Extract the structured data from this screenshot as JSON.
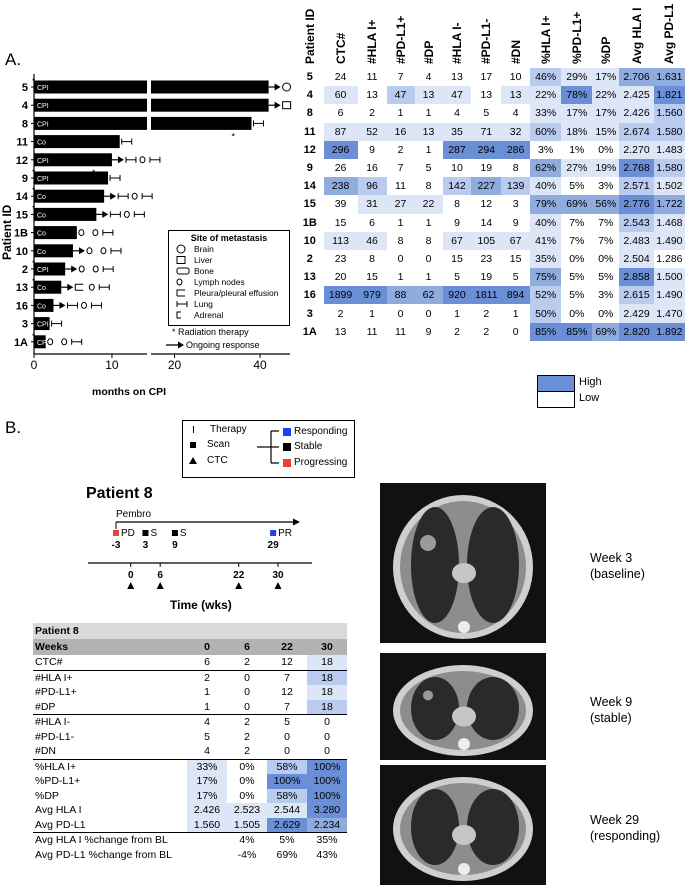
{
  "panel_a_label": "A.",
  "panel_b_label": "B.",
  "swimmer": {
    "y_axis_label": "Patient ID",
    "x_axis_label": "months on CPI",
    "x_ticks": [
      "0",
      "10",
      "20",
      "40"
    ],
    "x_range": [
      0,
      47
    ],
    "axis_break": 14.5,
    "patients": [
      {
        "id": "5",
        "tx": "CPI",
        "months": 42,
        "rt": true,
        "ongoing": true,
        "marker": "brain",
        "star_mid": false
      },
      {
        "id": "4",
        "tx": "CPI",
        "months": 42,
        "rt": false,
        "ongoing": true,
        "marker": "liver",
        "star_mid": false
      },
      {
        "id": "8",
        "tx": "CPI",
        "months": 38,
        "rt": false,
        "ongoing": false,
        "marker": "lung",
        "star_mid": true
      },
      {
        "id": "11",
        "tx": "Co",
        "months": 11,
        "rt": false,
        "ongoing": false,
        "marker": "lung",
        "star_mid": false
      },
      {
        "id": "12",
        "tx": "CPI",
        "months": 10,
        "rt": false,
        "ongoing": true,
        "marker": "lung",
        "star_mid": true
      },
      {
        "id": "9",
        "tx": "CPI",
        "months": 9.5,
        "rt": true,
        "ongoing": false,
        "marker": "lung",
        "star_mid": false
      },
      {
        "id": "14",
        "tx": "Co",
        "months": 9,
        "rt": true,
        "ongoing": true,
        "marker": "lung",
        "star_mid": false
      },
      {
        "id": "15",
        "tx": "Co",
        "months": 8,
        "rt": true,
        "ongoing": true,
        "marker": "lung",
        "star_mid": false
      },
      {
        "id": "1B",
        "tx": "Co",
        "months": 5.5,
        "rt": false,
        "ongoing": false,
        "marker": "lymph",
        "star_mid": false
      },
      {
        "id": "10",
        "tx": "Co",
        "months": 5,
        "rt": false,
        "ongoing": true,
        "marker": "lymph",
        "star_mid": false
      },
      {
        "id": "2",
        "tx": "CPI",
        "months": 4,
        "rt": true,
        "ongoing": true,
        "marker": "lymph",
        "star_mid": false
      },
      {
        "id": "13",
        "tx": "Co",
        "months": 3.5,
        "rt": true,
        "ongoing": true,
        "marker": "pleura",
        "star_mid": false
      },
      {
        "id": "16",
        "tx": "Co",
        "months": 2.5,
        "rt": false,
        "ongoing": true,
        "marker": "lung",
        "star_mid": false
      },
      {
        "id": "3",
        "tx": "CPI",
        "months": 2,
        "rt": false,
        "ongoing": false,
        "marker": "lung",
        "star_mid": false
      },
      {
        "id": "1A",
        "tx": "CPI",
        "months": 1.5,
        "rt": true,
        "ongoing": false,
        "marker": "lymph",
        "star_mid": false
      }
    ],
    "legend_title": "Site of metastasis",
    "legend_items": [
      {
        "name": "brain",
        "label": "Brain"
      },
      {
        "name": "liver",
        "label": "Liver"
      },
      {
        "name": "bone",
        "label": "Bone"
      },
      {
        "name": "lymph",
        "label": "Lymph nodes"
      },
      {
        "name": "pleura",
        "label": "Pleura/pleural effusion"
      },
      {
        "name": "lung",
        "label": "Lung"
      },
      {
        "name": "adrenal",
        "label": "Adrenal"
      }
    ],
    "rt_label": "Radiation therapy",
    "ongoing_label": "Ongoing response"
  },
  "heatmap": {
    "headers": [
      "Patient ID",
      "CTC#",
      "#HLA I+",
      "#PD-L1+",
      "#DP",
      "#HLA I-",
      "#PD-L1-",
      "#DN",
      "%HLA I+",
      "%PD-L1+",
      "%DP",
      "Avg HLA I",
      "Avg PD-L1"
    ],
    "rows": [
      {
        "id": "5",
        "cells": [
          "24",
          "11",
          "7",
          "4",
          "13",
          "17",
          "10",
          "46%",
          "29%",
          "17%",
          "2.706",
          "1.631"
        ],
        "shade": [
          0,
          0,
          0,
          0,
          0,
          0,
          0,
          2,
          1,
          1,
          3,
          3
        ]
      },
      {
        "id": "4",
        "cells": [
          "60",
          "13",
          "47",
          "13",
          "47",
          "13",
          "13",
          "22%",
          "78%",
          "22%",
          "2.425",
          "1.821"
        ],
        "shade": [
          1,
          0,
          2,
          1,
          1,
          0,
          1,
          1,
          4,
          1,
          1,
          4
        ]
      },
      {
        "id": "8",
        "cells": [
          "6",
          "2",
          "1",
          "1",
          "4",
          "5",
          "4",
          "33%",
          "17%",
          "17%",
          "2.426",
          "1.560"
        ],
        "shade": [
          0,
          0,
          0,
          0,
          0,
          0,
          0,
          1,
          1,
          1,
          1,
          2
        ]
      },
      {
        "id": "11",
        "cells": [
          "87",
          "52",
          "16",
          "13",
          "35",
          "71",
          "32",
          "60%",
          "18%",
          "15%",
          "2.674",
          "1.580"
        ],
        "shade": [
          1,
          1,
          1,
          1,
          1,
          1,
          1,
          2,
          1,
          1,
          2,
          2
        ]
      },
      {
        "id": "12",
        "cells": [
          "296",
          "9",
          "2",
          "1",
          "287",
          "294",
          "286",
          "3%",
          "1%",
          "0%",
          "2.270",
          "1.483"
        ],
        "shade": [
          4,
          0,
          0,
          0,
          4,
          4,
          4,
          0,
          0,
          0,
          1,
          1
        ]
      },
      {
        "id": "9",
        "cells": [
          "26",
          "16",
          "7",
          "5",
          "10",
          "19",
          "8",
          "62%",
          "27%",
          "19%",
          "2.768",
          "1.580"
        ],
        "shade": [
          0,
          0,
          0,
          0,
          0,
          0,
          0,
          3,
          1,
          1,
          4,
          2
        ]
      },
      {
        "id": "14",
        "cells": [
          "238",
          "96",
          "11",
          "8",
          "142",
          "227",
          "139",
          "40%",
          "5%",
          "3%",
          "2.571",
          "1.502"
        ],
        "shade": [
          3,
          2,
          0,
          0,
          2,
          3,
          2,
          1,
          0,
          0,
          2,
          1
        ]
      },
      {
        "id": "15",
        "cells": [
          "39",
          "31",
          "27",
          "22",
          "8",
          "12",
          "3",
          "79%",
          "69%",
          "56%",
          "2.776",
          "1.722"
        ],
        "shade": [
          0,
          1,
          1,
          1,
          0,
          0,
          0,
          3,
          3,
          3,
          4,
          3
        ]
      },
      {
        "id": "1B",
        "cells": [
          "15",
          "6",
          "1",
          "1",
          "9",
          "14",
          "9",
          "40%",
          "7%",
          "7%",
          "2.543",
          "1.468"
        ],
        "shade": [
          0,
          0,
          0,
          0,
          0,
          0,
          0,
          1,
          0,
          0,
          2,
          1
        ]
      },
      {
        "id": "10",
        "cells": [
          "113",
          "46",
          "8",
          "8",
          "67",
          "105",
          "67",
          "41%",
          "7%",
          "7%",
          "2.483",
          "1.490"
        ],
        "shade": [
          1,
          1,
          0,
          0,
          1,
          1,
          1,
          1,
          0,
          0,
          1,
          1
        ]
      },
      {
        "id": "2",
        "cells": [
          "23",
          "8",
          "0",
          "0",
          "15",
          "23",
          "15",
          "35%",
          "0%",
          "0%",
          "2.504",
          "1.286"
        ],
        "shade": [
          0,
          0,
          0,
          0,
          0,
          0,
          0,
          1,
          0,
          0,
          1,
          0
        ]
      },
      {
        "id": "13",
        "cells": [
          "20",
          "15",
          "1",
          "1",
          "5",
          "19",
          "5",
          "75%",
          "5%",
          "5%",
          "2.858",
          "1.500"
        ],
        "shade": [
          0,
          0,
          0,
          0,
          0,
          0,
          0,
          3,
          0,
          0,
          4,
          1
        ]
      },
      {
        "id": "16",
        "cells": [
          "1899",
          "979",
          "88",
          "62",
          "920",
          "1811",
          "894",
          "52%",
          "5%",
          "3%",
          "2.615",
          "1.490"
        ],
        "shade": [
          4,
          4,
          3,
          3,
          4,
          4,
          4,
          2,
          0,
          0,
          2,
          1
        ]
      },
      {
        "id": "3",
        "cells": [
          "2",
          "1",
          "0",
          "0",
          "1",
          "2",
          "1",
          "50%",
          "0%",
          "0%",
          "2.429",
          "1.470"
        ],
        "shade": [
          0,
          0,
          0,
          0,
          0,
          0,
          0,
          2,
          0,
          0,
          1,
          1
        ]
      },
      {
        "id": "1A",
        "cells": [
          "13",
          "11",
          "11",
          "9",
          "2",
          "2",
          "0",
          "85%",
          "85%",
          "69%",
          "2.820",
          "1.892"
        ],
        "shade": [
          0,
          0,
          0,
          0,
          0,
          0,
          0,
          4,
          4,
          3,
          4,
          4
        ]
      }
    ],
    "legend_high": "High",
    "legend_low": "Low"
  },
  "shade_colors": [
    "#ffffff",
    "#dde6f7",
    "#b9cbee",
    "#90acdf",
    "#6a8fd6"
  ],
  "accent_colors": {
    "red": "#e8413a",
    "blue": "#1f3ff5"
  },
  "timeline_legend": {
    "therapy": "Therapy",
    "scan": "Scan",
    "ctc": "CTC",
    "responding": "Responding",
    "stable": "Stable",
    "progressing": "Progressing"
  },
  "patient8_timeline": {
    "title": "Patient 8",
    "drug": "Pembro",
    "x_axis_label": "Time (wks)",
    "scans": [
      {
        "week": "-3",
        "label": "PD",
        "status": "progressing"
      },
      {
        "week": "3",
        "label": "S",
        "status": "stable"
      },
      {
        "week": "9",
        "label": "S",
        "status": "stable"
      },
      {
        "week": "29",
        "label": "PR",
        "status": "responding"
      }
    ],
    "ctc_weeks": [
      "0",
      "6",
      "22",
      "30"
    ]
  },
  "patient8_table": {
    "title": "Patient 8",
    "header": [
      "Weeks",
      "0",
      "6",
      "22",
      "30"
    ],
    "groups": [
      [
        [
          "CTC#",
          "6",
          "2",
          "12",
          "18"
        ]
      ],
      [
        [
          "#HLA I+",
          "2",
          "0",
          "7",
          "18"
        ],
        [
          "#PD-L1+",
          "1",
          "0",
          "12",
          "18"
        ],
        [
          "#DP",
          "1",
          "0",
          "7",
          "18"
        ]
      ],
      [
        [
          "#HLA I-",
          "4",
          "2",
          "5",
          "0"
        ],
        [
          "#PD-L1-",
          "5",
          "2",
          "0",
          "0"
        ],
        [
          "#DN",
          "4",
          "2",
          "0",
          "0"
        ]
      ],
      [
        [
          "%HLA I+",
          "33%",
          "0%",
          "58%",
          "100%"
        ],
        [
          "%PD-L1+",
          "17%",
          "0%",
          "100%",
          "100%"
        ],
        [
          "%DP",
          "17%",
          "0%",
          "58%",
          "100%"
        ],
        [
          "Avg HLA I",
          "2.426",
          "2.523",
          "2.544",
          "3.280"
        ],
        [
          "Avg PD-L1",
          "1.560",
          "1.505",
          "2.629",
          "2.234"
        ]
      ],
      [
        [
          "Avg HLA I %change from BL",
          "",
          "4%",
          "5%",
          "35%"
        ],
        [
          "Avg PD-L1 %change from BL",
          "",
          "-4%",
          "69%",
          "43%"
        ]
      ]
    ],
    "shade": [
      [
        [
          0,
          0,
          0,
          1
        ]
      ],
      [
        [
          0,
          0,
          0,
          2
        ],
        [
          0,
          0,
          0,
          1
        ],
        [
          0,
          0,
          0,
          2
        ]
      ],
      [
        [
          0,
          0,
          0,
          0
        ],
        [
          0,
          0,
          0,
          0
        ],
        [
          0,
          0,
          0,
          0
        ]
      ],
      [
        [
          1,
          0,
          2,
          4
        ],
        [
          1,
          0,
          4,
          4
        ],
        [
          1,
          0,
          2,
          4
        ],
        [
          1,
          1,
          1,
          4
        ],
        [
          1,
          1,
          4,
          3
        ]
      ],
      [
        [
          0,
          0,
          0,
          0
        ],
        [
          0,
          0,
          0,
          0
        ]
      ]
    ]
  },
  "ct_scans": [
    {
      "label1": "Week 3",
      "label2": "(baseline)"
    },
    {
      "label1": "Week 9",
      "label2": "(stable)"
    },
    {
      "label1": "Week 29",
      "label2": "(responding)"
    }
  ]
}
